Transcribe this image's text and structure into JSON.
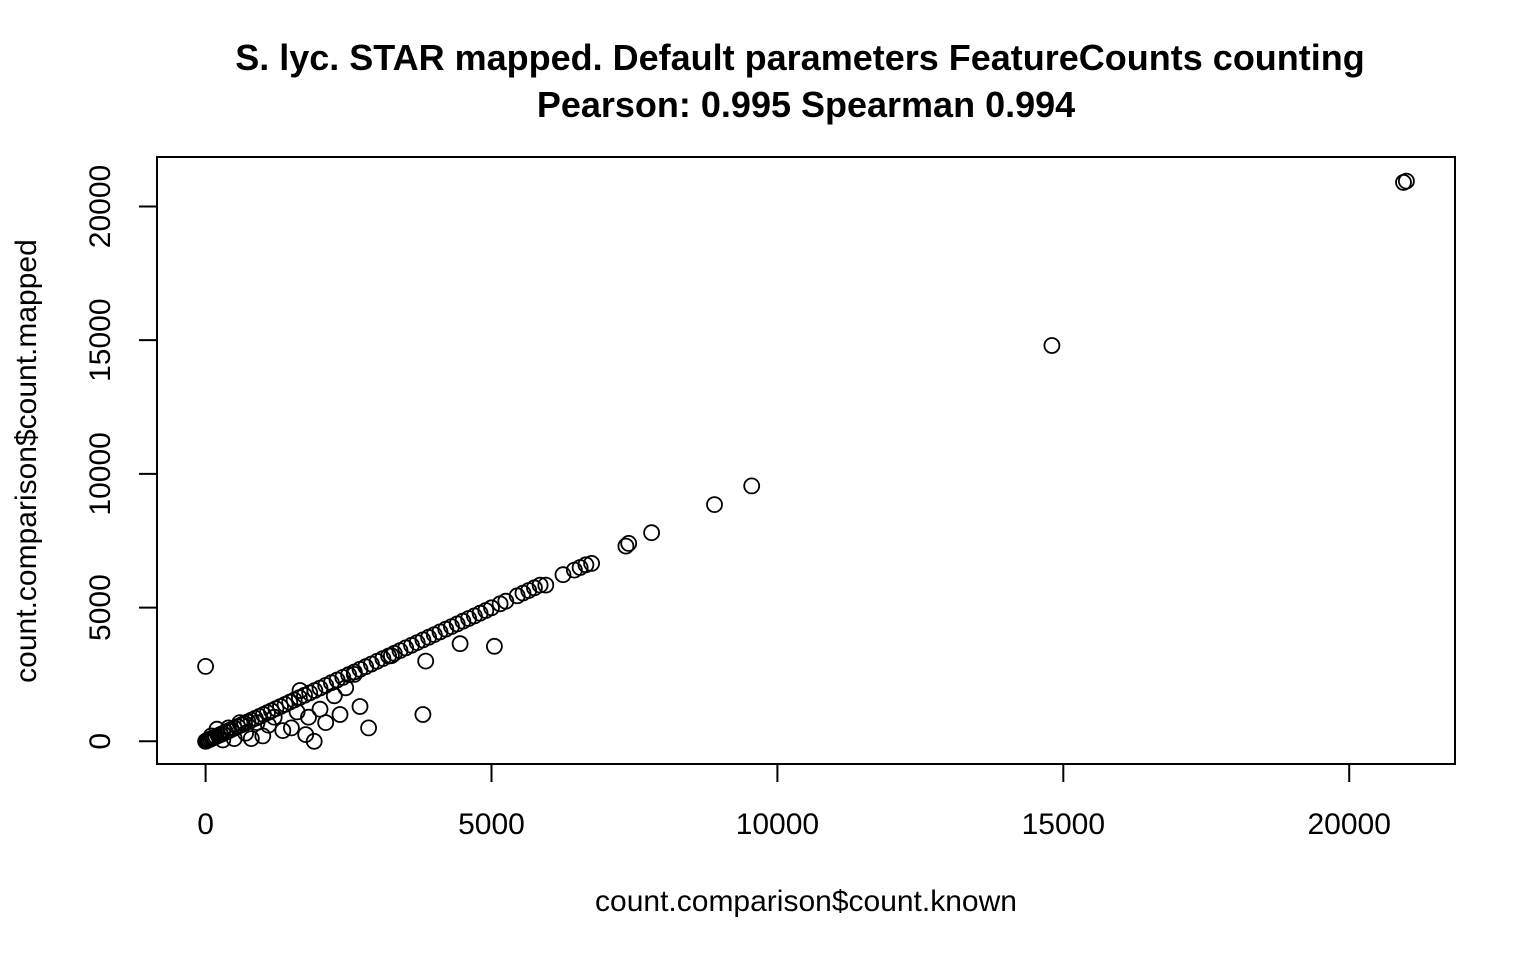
{
  "chart_data": {
    "type": "scatter",
    "title": "S. lyc.  STAR mapped.  Default parameters FeatureCounts counting",
    "subtitle": "Pearson: 0.995 Spearman 0.994",
    "xlabel": "count.comparison$count.known",
    "ylabel": "count.comparison$count.mapped",
    "xlim": [
      -850,
      21850
    ],
    "ylim": [
      -850,
      21850
    ],
    "x_ticks": [
      0,
      5000,
      10000,
      15000,
      20000
    ],
    "y_ticks": [
      0,
      5000,
      10000,
      15000,
      20000
    ],
    "marker": "open-circle",
    "grid": false,
    "series": [
      {
        "x": [
          0,
          20,
          40,
          60,
          90,
          120,
          150,
          180,
          220,
          260,
          300,
          350,
          400,
          450,
          500,
          560,
          620,
          680,
          740,
          800,
          870,
          940,
          1010,
          1080,
          1150,
          1230,
          1310,
          1390,
          1470,
          1550,
          1640,
          1730,
          1820,
          1910,
          2000,
          2100,
          2200,
          2300,
          2400,
          2500,
          2600,
          2700,
          2800,
          2900,
          3000,
          3100,
          3200,
          3300,
          3400,
          3500,
          3600,
          3700,
          3800,
          3900,
          4000,
          4100,
          4200,
          4300,
          4400,
          4500,
          4600,
          4700,
          4800,
          4900,
          5000,
          5150,
          5250,
          5450,
          5550,
          5650,
          5750,
          5850,
          5950,
          6250,
          6450,
          6550,
          6650,
          6750,
          7350,
          7400,
          7800,
          8900,
          9550,
          14800,
          20950,
          21000,
          0,
          4450,
          5050,
          3800,
          2850,
          1900,
          1750,
          2600,
          2350,
          2100,
          1650,
          1500,
          3250,
          2700,
          3850,
          1350,
          1000,
          800,
          600,
          400,
          300,
          200,
          100,
          700,
          500,
          1200,
          900,
          1100,
          2000,
          1800,
          2250,
          2450,
          1600
        ],
        "y": [
          0,
          20,
          40,
          60,
          85,
          115,
          145,
          175,
          215,
          255,
          290,
          340,
          390,
          440,
          490,
          550,
          610,
          670,
          730,
          790,
          860,
          930,
          1000,
          1070,
          1140,
          1220,
          1300,
          1380,
          1460,
          1540,
          1630,
          1720,
          1810,
          1900,
          1990,
          2090,
          2190,
          2290,
          2390,
          2490,
          2590,
          2690,
          2790,
          2890,
          2990,
          3090,
          3190,
          3290,
          3390,
          3490,
          3590,
          3690,
          3790,
          3890,
          3990,
          4090,
          4190,
          4290,
          4390,
          4490,
          4590,
          4690,
          4790,
          4890,
          4990,
          5140,
          5240,
          5440,
          5540,
          5640,
          5740,
          5840,
          5840,
          6230,
          6400,
          6500,
          6600,
          6650,
          7300,
          7400,
          7800,
          8850,
          9550,
          14800,
          20900,
          20950,
          2800,
          3650,
          3550,
          1000,
          500,
          0,
          250,
          2500,
          1000,
          700,
          1900,
          500,
          3200,
          1300,
          3000,
          400,
          200,
          100,
          700,
          500,
          50,
          450,
          200,
          300,
          100,
          900,
          700,
          600,
          1200,
          900,
          1700,
          2000,
          1100
        ]
      }
    ]
  }
}
